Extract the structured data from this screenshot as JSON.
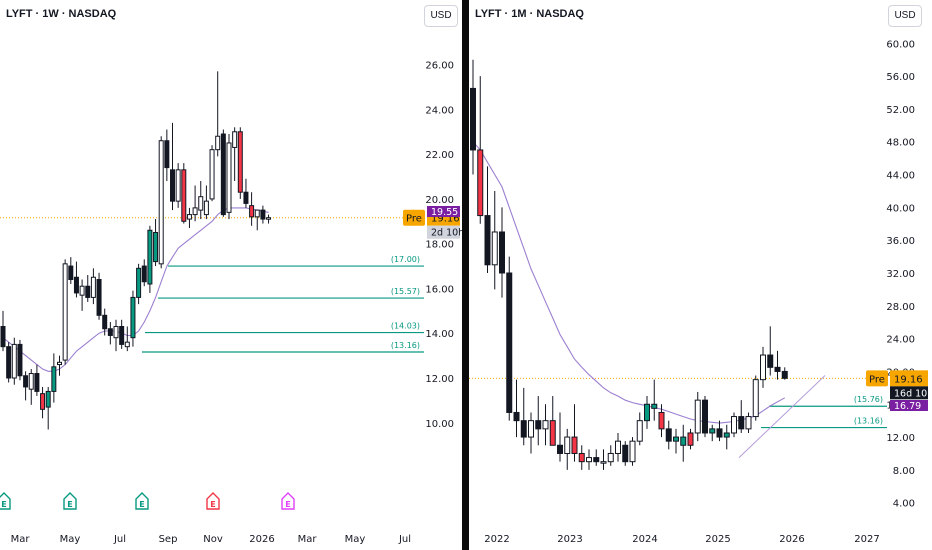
{
  "left_chart": {
    "title": "LYFT · 1W · NASDAQ",
    "currency": "USD",
    "y_ticks": [
      "26.00",
      "24.00",
      "22.00",
      "20.00",
      "18.00",
      "16.00",
      "14.00",
      "12.00",
      "10.00"
    ],
    "x_ticks": [
      "Mar",
      "May",
      "Jul",
      "Sep",
      "Nov",
      "2026",
      "Mar",
      "May",
      "Jul"
    ],
    "levels": [
      "(17.00)",
      "(15.57)",
      "(14.03)",
      "(13.16)"
    ],
    "price_tags": {
      "ma": "19.55",
      "pre_label": "Pre",
      "pre": "19.16",
      "countdown": "2d 10h"
    },
    "event_marks": [
      {
        "label": "E",
        "color": "#089981"
      },
      {
        "label": "E",
        "color": "#089981"
      },
      {
        "label": "E",
        "color": "#089981"
      },
      {
        "label": "E",
        "color": "#f23645"
      },
      {
        "label": "E",
        "color": "#e040fb"
      }
    ],
    "colors": {
      "up": "#089981",
      "down": "#f23645",
      "ma": "#9c7fd0",
      "pre": "#f7a600",
      "ma_tag": "#7b1fa2"
    }
  },
  "right_chart": {
    "title": "LYFT · 1M · NASDAQ",
    "currency": "USD",
    "y_ticks": [
      "60.00",
      "56.00",
      "52.00",
      "48.00",
      "44.00",
      "40.00",
      "36.00",
      "32.00",
      "28.00",
      "24.00",
      "20.00",
      "16.00",
      "12.00",
      "8.00",
      "4.00"
    ],
    "x_ticks": [
      "2022",
      "2023",
      "2024",
      "2025",
      "2026",
      "2027"
    ],
    "levels": [
      "(15.76)",
      "(13.16)"
    ],
    "price_tags": {
      "pre_label": "Pre",
      "pre": "19.16",
      "countdown": "16d 10h",
      "ma": "16.79"
    }
  },
  "chart_data": [
    {
      "type": "candlestick",
      "title": "LYFT · 1W · NASDAQ",
      "xlabel": "",
      "ylabel": "",
      "ylim": [
        7.8,
        27.1
      ],
      "x_ticks": [
        "Mar",
        "May",
        "Jul",
        "Sep",
        "Nov",
        "2026",
        "Mar",
        "May",
        "Jul"
      ],
      "candles": [
        [
          14.3,
          15.0,
          13.2,
          13.4
        ],
        [
          13.4,
          13.6,
          11.8,
          12.0
        ],
        [
          12.0,
          13.8,
          11.7,
          13.5
        ],
        [
          13.5,
          13.7,
          11.9,
          12.1
        ],
        [
          12.1,
          12.3,
          11.0,
          11.6
        ],
        [
          11.5,
          12.4,
          10.8,
          12.2
        ],
        [
          12.2,
          12.6,
          11.2,
          11.4
        ],
        [
          11.3,
          11.6,
          10.2,
          10.6
        ],
        [
          10.7,
          11.6,
          9.7,
          11.4
        ],
        [
          11.4,
          13.1,
          10.9,
          12.5
        ],
        [
          12.6,
          13.0,
          12.1,
          12.7
        ],
        [
          12.8,
          17.3,
          12.6,
          17.1
        ],
        [
          17.0,
          17.4,
          16.2,
          16.4
        ],
        [
          16.5,
          17.2,
          15.6,
          15.8
        ],
        [
          15.7,
          16.4,
          15.0,
          16.1
        ],
        [
          16.1,
          16.6,
          15.4,
          15.6
        ],
        [
          15.6,
          16.9,
          15.3,
          16.5
        ],
        [
          16.4,
          16.7,
          14.6,
          14.8
        ],
        [
          14.8,
          15.1,
          13.9,
          14.2
        ],
        [
          14.2,
          14.5,
          13.5,
          13.9
        ],
        [
          13.8,
          14.6,
          13.2,
          14.3
        ],
        [
          14.3,
          14.6,
          13.3,
          13.5
        ],
        [
          13.4,
          14.3,
          13.2,
          13.6
        ],
        [
          13.8,
          15.9,
          13.4,
          15.6
        ],
        [
          15.6,
          17.1,
          15.3,
          16.9
        ],
        [
          17.0,
          17.3,
          16.1,
          16.3
        ],
        [
          16.2,
          18.8,
          15.8,
          18.6
        ],
        [
          18.5,
          19.1,
          17.0,
          17.2
        ],
        [
          17.1,
          22.8,
          16.9,
          22.6
        ],
        [
          22.6,
          23.1,
          20.8,
          21.4
        ],
        [
          21.3,
          23.4,
          19.5,
          19.9
        ],
        [
          19.9,
          21.6,
          19.6,
          21.3
        ],
        [
          21.3,
          21.6,
          18.9,
          19.0
        ],
        [
          19.1,
          19.6,
          18.7,
          19.3
        ],
        [
          19.3,
          20.6,
          19.0,
          19.6
        ],
        [
          19.5,
          20.8,
          19.1,
          20.1
        ],
        [
          19.3,
          20.6,
          19.1,
          19.9
        ],
        [
          20.0,
          22.4,
          19.9,
          22.2
        ],
        [
          22.2,
          25.7,
          21.9,
          22.8
        ],
        [
          22.9,
          23.1,
          19.2,
          19.3
        ],
        [
          19.4,
          22.9,
          19.1,
          22.5
        ],
        [
          22.3,
          23.2,
          20.8,
          23.0
        ],
        [
          23.0,
          23.2,
          20.0,
          20.3
        ],
        [
          20.3,
          20.9,
          19.6,
          19.8
        ],
        [
          19.7,
          20.3,
          18.8,
          19.2
        ],
        [
          19.2,
          19.5,
          18.6,
          19.5
        ],
        [
          19.5,
          19.7,
          18.9,
          19.1
        ],
        [
          19.1,
          19.3,
          18.9,
          19.16
        ]
      ],
      "moving_average": [
        13.8,
        13.6,
        13.4,
        13.2,
        13.0,
        12.8,
        12.6,
        12.4,
        12.3,
        12.3,
        12.4,
        12.6,
        12.9,
        13.2,
        13.4,
        13.6,
        13.8,
        14.0,
        14.1,
        14.1,
        14.1,
        14.0,
        13.9,
        13.9,
        14.1,
        14.5,
        15.0,
        15.6,
        16.3,
        17.0,
        17.4,
        17.8,
        18.0,
        18.2,
        18.4,
        18.6,
        18.8,
        19.0,
        19.3,
        19.5,
        19.6,
        19.6,
        19.6,
        19.6,
        19.55,
        19.5,
        19.45,
        19.4
      ],
      "horizontal_levels": [
        17.0,
        15.57,
        14.03,
        13.16
      ],
      "price_line": 19.16,
      "ma_last": 19.55
    },
    {
      "type": "candlestick",
      "title": "LYFT · 1M · NASDAQ",
      "xlabel": "",
      "ylabel": "",
      "ylim": [
        2.5,
        61.5
      ],
      "x_ticks": [
        "2022",
        "2023",
        "2024",
        "2025",
        "2026",
        "2027"
      ],
      "candles": [
        [
          54.5,
          58.0,
          44.0,
          47.0
        ],
        [
          47.0,
          56.0,
          38.0,
          39.0
        ],
        [
          39.0,
          45.0,
          32.0,
          33.0
        ],
        [
          33.0,
          42.0,
          30.0,
          37.0
        ],
        [
          37.0,
          40.0,
          29.0,
          32.0
        ],
        [
          32.0,
          34.0,
          14.0,
          15.0
        ],
        [
          15.0,
          19.0,
          12.0,
          14.0
        ],
        [
          14.0,
          18.0,
          11.0,
          12.0
        ],
        [
          12.0,
          15.0,
          10.0,
          14.0
        ],
        [
          14.0,
          17.0,
          11.0,
          13.0
        ],
        [
          13.0,
          16.0,
          11.0,
          14.0
        ],
        [
          14.0,
          17.0,
          11.0,
          11.0
        ],
        [
          11.0,
          15.0,
          9.0,
          10.0
        ],
        [
          10.0,
          13.0,
          8.0,
          12.0
        ],
        [
          12.0,
          16.0,
          9.0,
          10.0
        ],
        [
          10.0,
          11.0,
          8.0,
          9.0
        ],
        [
          9.0,
          10.5,
          8.0,
          9.5
        ],
        [
          9.5,
          10.5,
          8.5,
          9.0
        ],
        [
          9.0,
          10.5,
          8.0,
          9.0
        ],
        [
          9.0,
          11.0,
          8.5,
          10.0
        ],
        [
          10.0,
          12.5,
          9.0,
          11.5
        ],
        [
          11.0,
          11.5,
          8.5,
          9.0
        ],
        [
          9.0,
          12.0,
          8.5,
          11.5
        ],
        [
          11.5,
          15.0,
          11.0,
          14.0
        ],
        [
          14.0,
          17.0,
          13.0,
          16.0
        ],
        [
          16.0,
          19.0,
          14.0,
          15.5
        ],
        [
          15.0,
          16.0,
          12.0,
          13.0
        ],
        [
          13.0,
          14.0,
          10.5,
          11.5
        ],
        [
          11.5,
          13.0,
          10.0,
          12.0
        ],
        [
          12.0,
          13.5,
          9.0,
          11.0
        ],
        [
          11.0,
          13.0,
          10.5,
          12.5
        ],
        [
          12.5,
          17.5,
          11.5,
          16.5
        ],
        [
          16.5,
          17.0,
          12.0,
          12.5
        ],
        [
          12.5,
          13.5,
          11.5,
          13.0
        ],
        [
          13.0,
          14.0,
          11.5,
          12.0
        ],
        [
          12.0,
          13.5,
          10.5,
          12.5
        ],
        [
          12.5,
          15.0,
          12.0,
          14.5
        ],
        [
          14.5,
          16.5,
          12.5,
          13.0
        ],
        [
          13.0,
          15.0,
          12.5,
          14.5
        ],
        [
          14.5,
          19.5,
          14.0,
          19.0
        ],
        [
          19.0,
          23.0,
          18.0,
          22.0
        ],
        [
          22.0,
          25.5,
          19.5,
          20.5
        ],
        [
          20.5,
          22.5,
          19.0,
          20.0
        ],
        [
          20.0,
          20.5,
          19.0,
          19.16
        ]
      ],
      "moving_average": [
        48.0,
        47.0,
        45.5,
        44.0,
        42.5,
        40.0,
        37.5,
        35.0,
        32.5,
        30.5,
        28.5,
        26.5,
        24.5,
        23.0,
        21.5,
        20.5,
        19.6,
        18.8,
        18.0,
        17.4,
        17.0,
        16.5,
        16.2,
        16.0,
        15.8,
        15.6,
        15.4,
        15.1,
        14.8,
        14.5,
        14.2,
        14.0,
        13.9,
        13.8,
        13.7,
        13.8,
        13.9,
        14.1,
        14.3,
        14.6,
        15.2,
        15.8,
        16.3,
        16.79
      ],
      "horizontal_levels": [
        15.76,
        13.16
      ],
      "price_line": 19.16,
      "ma_last": 16.79
    }
  ]
}
